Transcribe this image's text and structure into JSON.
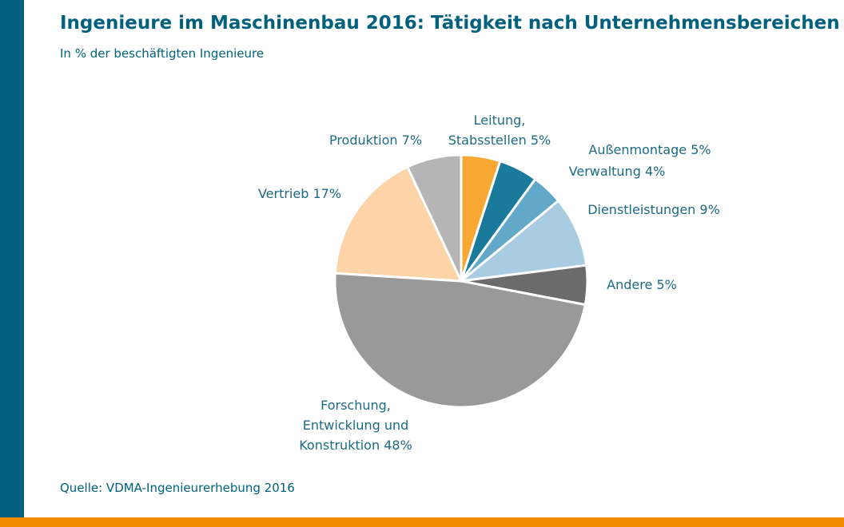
{
  "chart_data": {
    "type": "pie",
    "title": "Ingenieure im Maschinenbau 2016: Tätigkeit nach Unternehmensbereichen",
    "subtitle": "In % der beschäftigten Ingenieure",
    "source": "Quelle: VDMA-Ingenieurerhebung 2016",
    "categories": [
      "Leitung, Stabsstellen",
      "Außenmontage",
      "Verwaltung",
      "Dienstleistungen",
      "Andere",
      "Forschung, Entwicklung und Konstruktion",
      "Vertrieb",
      "Produktion"
    ],
    "values": [
      5,
      5,
      4,
      9,
      5,
      48,
      17,
      7
    ],
    "value_labels": [
      "5%",
      "5%",
      "4%",
      "9%",
      "5%",
      "48%",
      "17%",
      "7%"
    ],
    "colors": [
      "#f6a833",
      "#1a7a9c",
      "#62a9c9",
      "#a8cce2",
      "#6b6b6b",
      "#999999",
      "#fdd3a8",
      "#b5b5b5"
    ]
  }
}
